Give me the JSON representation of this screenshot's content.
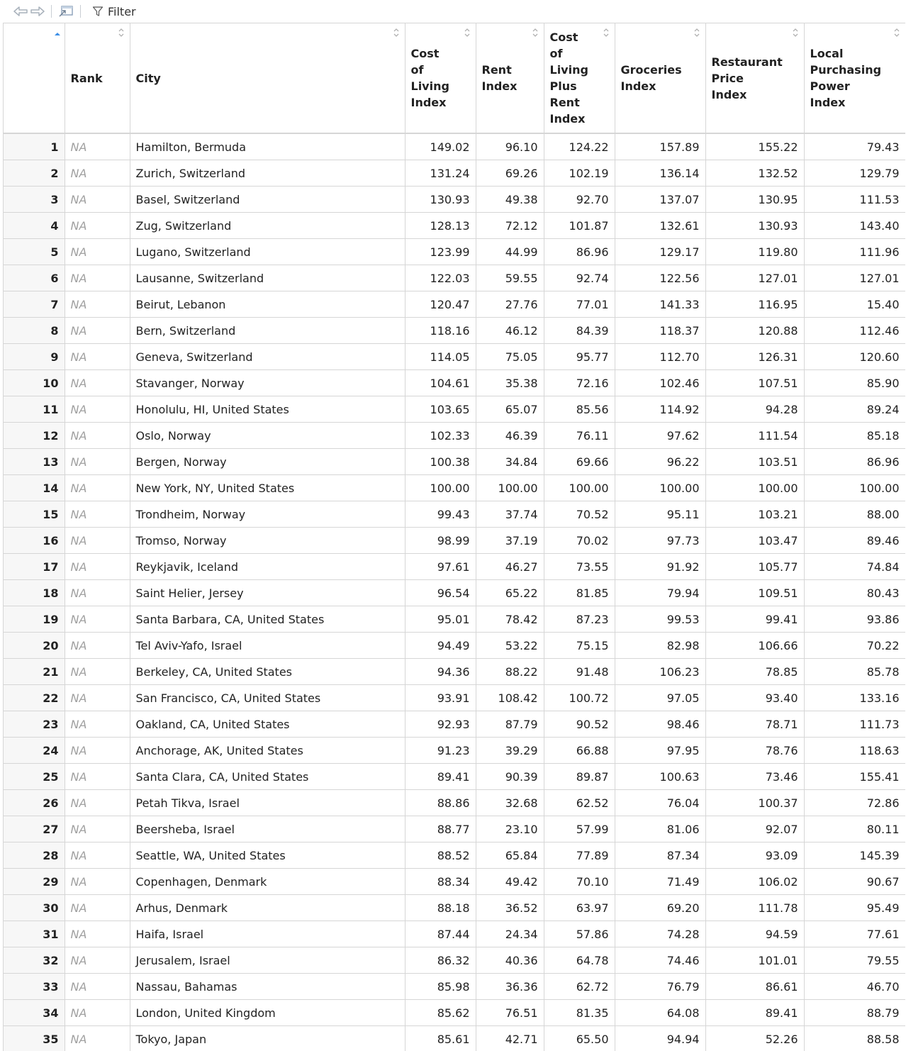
{
  "toolbar": {
    "filter_label": "Filter"
  },
  "columns": [
    {
      "label": ""
    },
    {
      "label": "Rank"
    },
    {
      "label": "City"
    },
    {
      "label": "Cost of Living Index",
      "lines": [
        "Cost",
        "of",
        "Living",
        "Index"
      ]
    },
    {
      "label": "Rent Index",
      "lines": [
        "Rent",
        "Index"
      ]
    },
    {
      "label": "Cost of Living Plus Rent Index",
      "lines": [
        "Cost",
        "of",
        "Living",
        "Plus",
        "Rent",
        "Index"
      ]
    },
    {
      "label": "Groceries Index",
      "lines": [
        "Groceries",
        "Index"
      ]
    },
    {
      "label": "Restaurant Price Index",
      "lines": [
        "Restaurant",
        "Price",
        "Index"
      ]
    },
    {
      "label": "Local Purchasing Power Index",
      "lines": [
        "Local",
        "Purchasing",
        "Power",
        "Index"
      ]
    }
  ],
  "rows": [
    [
      "1",
      "NA",
      "Hamilton, Bermuda",
      "149.02",
      "96.10",
      "124.22",
      "157.89",
      "155.22",
      "79.43"
    ],
    [
      "2",
      "NA",
      "Zurich, Switzerland",
      "131.24",
      "69.26",
      "102.19",
      "136.14",
      "132.52",
      "129.79"
    ],
    [
      "3",
      "NA",
      "Basel, Switzerland",
      "130.93",
      "49.38",
      "92.70",
      "137.07",
      "130.95",
      "111.53"
    ],
    [
      "4",
      "NA",
      "Zug, Switzerland",
      "128.13",
      "72.12",
      "101.87",
      "132.61",
      "130.93",
      "143.40"
    ],
    [
      "5",
      "NA",
      "Lugano, Switzerland",
      "123.99",
      "44.99",
      "86.96",
      "129.17",
      "119.80",
      "111.96"
    ],
    [
      "6",
      "NA",
      "Lausanne, Switzerland",
      "122.03",
      "59.55",
      "92.74",
      "122.56",
      "127.01",
      "127.01"
    ],
    [
      "7",
      "NA",
      "Beirut, Lebanon",
      "120.47",
      "27.76",
      "77.01",
      "141.33",
      "116.95",
      "15.40"
    ],
    [
      "8",
      "NA",
      "Bern, Switzerland",
      "118.16",
      "46.12",
      "84.39",
      "118.37",
      "120.88",
      "112.46"
    ],
    [
      "9",
      "NA",
      "Geneva, Switzerland",
      "114.05",
      "75.05",
      "95.77",
      "112.70",
      "126.31",
      "120.60"
    ],
    [
      "10",
      "NA",
      "Stavanger, Norway",
      "104.61",
      "35.38",
      "72.16",
      "102.46",
      "107.51",
      "85.90"
    ],
    [
      "11",
      "NA",
      "Honolulu, HI, United States",
      "103.65",
      "65.07",
      "85.56",
      "114.92",
      "94.28",
      "89.24"
    ],
    [
      "12",
      "NA",
      "Oslo, Norway",
      "102.33",
      "46.39",
      "76.11",
      "97.62",
      "111.54",
      "85.18"
    ],
    [
      "13",
      "NA",
      "Bergen, Norway",
      "100.38",
      "34.84",
      "69.66",
      "96.22",
      "103.51",
      "86.96"
    ],
    [
      "14",
      "NA",
      "New York, NY, United States",
      "100.00",
      "100.00",
      "100.00",
      "100.00",
      "100.00",
      "100.00"
    ],
    [
      "15",
      "NA",
      "Trondheim, Norway",
      "99.43",
      "37.74",
      "70.52",
      "95.11",
      "103.21",
      "88.00"
    ],
    [
      "16",
      "NA",
      "Tromso, Norway",
      "98.99",
      "37.19",
      "70.02",
      "97.73",
      "103.47",
      "89.46"
    ],
    [
      "17",
      "NA",
      "Reykjavik, Iceland",
      "97.61",
      "46.27",
      "73.55",
      "91.92",
      "105.77",
      "74.84"
    ],
    [
      "18",
      "NA",
      "Saint Helier, Jersey",
      "96.54",
      "65.22",
      "81.85",
      "79.94",
      "109.51",
      "80.43"
    ],
    [
      "19",
      "NA",
      "Santa Barbara, CA, United States",
      "95.01",
      "78.42",
      "87.23",
      "99.53",
      "99.41",
      "93.86"
    ],
    [
      "20",
      "NA",
      "Tel Aviv-Yafo, Israel",
      "94.49",
      "53.22",
      "75.15",
      "82.98",
      "106.66",
      "70.22"
    ],
    [
      "21",
      "NA",
      "Berkeley, CA, United States",
      "94.36",
      "88.22",
      "91.48",
      "106.23",
      "78.85",
      "85.78"
    ],
    [
      "22",
      "NA",
      "San Francisco, CA, United States",
      "93.91",
      "108.42",
      "100.72",
      "97.05",
      "93.40",
      "133.16"
    ],
    [
      "23",
      "NA",
      "Oakland, CA, United States",
      "92.93",
      "87.79",
      "90.52",
      "98.46",
      "78.71",
      "111.73"
    ],
    [
      "24",
      "NA",
      "Anchorage, AK, United States",
      "91.23",
      "39.29",
      "66.88",
      "97.95",
      "78.76",
      "118.63"
    ],
    [
      "25",
      "NA",
      "Santa Clara, CA, United States",
      "89.41",
      "90.39",
      "89.87",
      "100.63",
      "73.46",
      "155.41"
    ],
    [
      "26",
      "NA",
      "Petah Tikva, Israel",
      "88.86",
      "32.68",
      "62.52",
      "76.04",
      "100.37",
      "72.86"
    ],
    [
      "27",
      "NA",
      "Beersheba, Israel",
      "88.77",
      "23.10",
      "57.99",
      "81.06",
      "92.07",
      "80.11"
    ],
    [
      "28",
      "NA",
      "Seattle, WA, United States",
      "88.52",
      "65.84",
      "77.89",
      "87.34",
      "93.09",
      "145.39"
    ],
    [
      "29",
      "NA",
      "Copenhagen, Denmark",
      "88.34",
      "49.42",
      "70.10",
      "71.49",
      "106.02",
      "90.67"
    ],
    [
      "30",
      "NA",
      "Arhus, Denmark",
      "88.18",
      "36.52",
      "63.97",
      "69.20",
      "111.78",
      "95.49"
    ],
    [
      "31",
      "NA",
      "Haifa, Israel",
      "87.44",
      "24.34",
      "57.86",
      "74.28",
      "94.59",
      "77.61"
    ],
    [
      "32",
      "NA",
      "Jerusalem, Israel",
      "86.32",
      "40.36",
      "64.78",
      "74.46",
      "101.01",
      "79.55"
    ],
    [
      "33",
      "NA",
      "Nassau, Bahamas",
      "85.98",
      "36.36",
      "62.72",
      "76.79",
      "86.61",
      "46.70"
    ],
    [
      "34",
      "NA",
      "London, United Kingdom",
      "85.62",
      "76.51",
      "81.35",
      "64.08",
      "89.41",
      "88.79"
    ],
    [
      "35",
      "NA",
      "Tokyo, Japan",
      "85.61",
      "42.71",
      "65.50",
      "94.94",
      "52.26",
      "88.58"
    ]
  ]
}
